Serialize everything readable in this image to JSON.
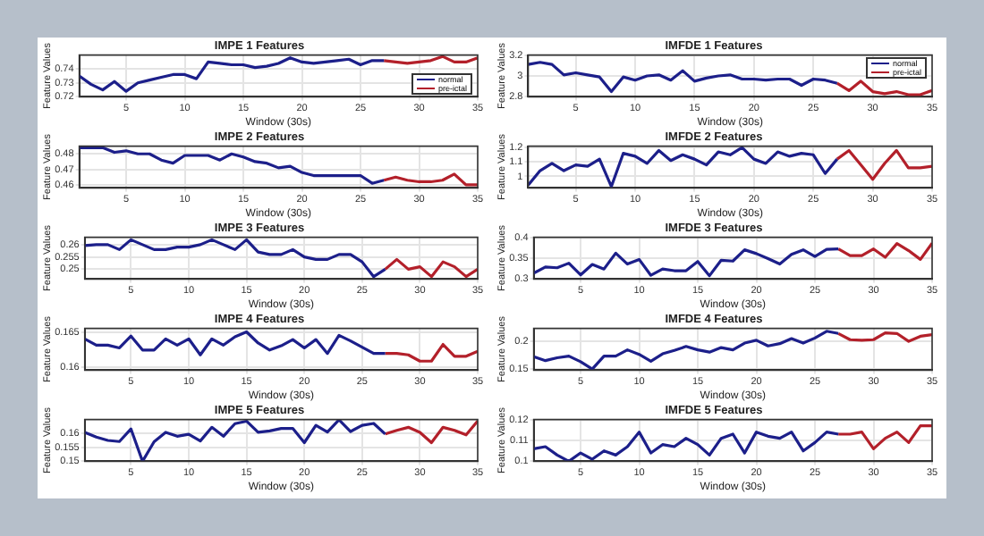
{
  "chart_data": [
    {
      "type": "line",
      "title": "IMPE 1 Features",
      "xlabel": "Window (30s)",
      "ylabel": "Feature Values",
      "xlim": [
        1,
        35
      ],
      "xticks": [
        5,
        10,
        15,
        20,
        25,
        30,
        35
      ],
      "ylim": [
        0.72,
        0.75
      ],
      "yticks": [
        0.72,
        0.73,
        0.74
      ],
      "grid": true,
      "legend": "bottom right",
      "series": [
        {
          "name": "normal",
          "color": "#1c1f8a",
          "x": [
            1,
            2,
            3,
            4,
            5,
            6,
            7,
            8,
            9,
            10,
            11,
            12,
            13,
            14,
            15,
            16,
            17,
            18,
            19,
            20,
            21,
            22,
            23,
            24,
            25,
            26,
            27
          ],
          "values": [
            0.735,
            0.729,
            0.725,
            0.731,
            0.724,
            0.73,
            0.732,
            0.734,
            0.736,
            0.736,
            0.733,
            0.745,
            0.744,
            0.743,
            0.743,
            0.741,
            0.742,
            0.744,
            0.748,
            0.745,
            0.744,
            0.745,
            0.746,
            0.747,
            0.743,
            0.746,
            0.746
          ]
        },
        {
          "name": "pre-ictal",
          "color": "#b3202a",
          "x": [
            27,
            28,
            29,
            30,
            31,
            32,
            33,
            34,
            35
          ],
          "values": [
            0.746,
            0.745,
            0.744,
            0.745,
            0.746,
            0.749,
            0.745,
            0.745,
            0.748
          ]
        }
      ]
    },
    {
      "type": "line",
      "title": "IMFDE 1 Features",
      "xlabel": "Window (30s)",
      "ylabel": "Feature Values",
      "xlim": [
        1,
        35
      ],
      "xticks": [
        5,
        10,
        15,
        20,
        25,
        30,
        35
      ],
      "ylim": [
        2.8,
        3.2
      ],
      "yticks": [
        2.8,
        3,
        3.2
      ],
      "grid": true,
      "legend": "top right",
      "series": [
        {
          "name": "normal",
          "color": "#1c1f8a",
          "x": [
            1,
            2,
            3,
            4,
            5,
            6,
            7,
            8,
            9,
            10,
            11,
            12,
            13,
            14,
            15,
            16,
            17,
            18,
            19,
            20,
            21,
            22,
            23,
            24,
            25,
            26,
            27
          ],
          "values": [
            3.11,
            3.13,
            3.11,
            3.01,
            3.03,
            3.01,
            2.99,
            2.85,
            2.99,
            2.96,
            3.0,
            3.01,
            2.96,
            3.05,
            2.95,
            2.98,
            3.0,
            3.01,
            2.97,
            2.97,
            2.96,
            2.97,
            2.97,
            2.91,
            2.97,
            2.96,
            2.93
          ]
        },
        {
          "name": "pre-ictal",
          "color": "#b3202a",
          "x": [
            27,
            28,
            29,
            30,
            31,
            32,
            33,
            34,
            35
          ],
          "values": [
            2.93,
            2.86,
            2.95,
            2.85,
            2.83,
            2.85,
            2.82,
            2.82,
            2.86
          ]
        }
      ]
    },
    {
      "type": "line",
      "title": "IMPE 2 Features",
      "xlabel": "Window (30s)",
      "ylabel": "Feature Values",
      "xlim": [
        1,
        35
      ],
      "xticks": [
        5,
        10,
        15,
        20,
        25,
        30,
        35
      ],
      "ylim": [
        0.458,
        0.485
      ],
      "yticks": [
        0.46,
        0.47,
        0.48
      ],
      "grid": true,
      "series": [
        {
          "color": "#1c1f8a",
          "x": [
            1,
            2,
            3,
            4,
            5,
            6,
            7,
            8,
            9,
            10,
            11,
            12,
            13,
            14,
            15,
            16,
            17,
            18,
            19,
            20,
            21,
            22,
            23,
            24,
            25,
            26,
            27
          ],
          "values": [
            0.484,
            0.484,
            0.484,
            0.481,
            0.482,
            0.48,
            0.48,
            0.476,
            0.474,
            0.479,
            0.479,
            0.479,
            0.476,
            0.48,
            0.478,
            0.475,
            0.474,
            0.471,
            0.472,
            0.468,
            0.466,
            0.466,
            0.466,
            0.466,
            0.466,
            0.461,
            0.463
          ]
        },
        {
          "color": "#b3202a",
          "x": [
            27,
            28,
            29,
            30,
            31,
            32,
            33,
            34,
            35
          ],
          "values": [
            0.463,
            0.465,
            0.463,
            0.462,
            0.462,
            0.463,
            0.467,
            0.46,
            0.46
          ]
        }
      ]
    },
    {
      "type": "line",
      "title": "IMFDE 2 Features",
      "xlabel": "Window (30s)",
      "ylabel": "Feature Values",
      "xlim": [
        1,
        35
      ],
      "xticks": [
        5,
        10,
        15,
        20,
        25,
        30,
        35
      ],
      "ylim": [
        0.92,
        1.21
      ],
      "yticks": [
        1,
        1.1,
        1.2
      ],
      "grid": true,
      "series": [
        {
          "color": "#1c1f8a",
          "x": [
            1,
            2,
            3,
            4,
            5,
            6,
            7,
            8,
            9,
            10,
            11,
            12,
            13,
            14,
            15,
            16,
            17,
            18,
            19,
            20,
            21,
            22,
            23,
            24,
            25,
            26,
            27
          ],
          "values": [
            0.94,
            1.04,
            1.09,
            1.04,
            1.08,
            1.07,
            1.12,
            0.93,
            1.16,
            1.14,
            1.09,
            1.18,
            1.11,
            1.15,
            1.12,
            1.08,
            1.17,
            1.15,
            1.2,
            1.12,
            1.09,
            1.17,
            1.14,
            1.16,
            1.15,
            1.02,
            1.12
          ]
        },
        {
          "color": "#b3202a",
          "x": [
            27,
            28,
            29,
            30,
            31,
            32,
            33,
            34,
            35
          ],
          "values": [
            1.12,
            1.18,
            1.08,
            0.98,
            1.09,
            1.18,
            1.06,
            1.06,
            1.07
          ]
        }
      ]
    },
    {
      "type": "line",
      "title": "IMPE 3 Features",
      "xlabel": "Window (30s)",
      "ylabel": "Feature Values",
      "xlim": [
        1,
        35
      ],
      "xticks": [
        5,
        10,
        15,
        20,
        25,
        30,
        35
      ],
      "ylim": [
        0.246,
        0.263
      ],
      "yticks": [
        0.25,
        0.255,
        0.26
      ],
      "grid": true,
      "series": [
        {
          "color": "#1c1f8a",
          "x": [
            1,
            2,
            3,
            4,
            5,
            6,
            7,
            8,
            9,
            10,
            11,
            12,
            13,
            14,
            15,
            16,
            17,
            18,
            19,
            20,
            21,
            22,
            23,
            24,
            25,
            26,
            27
          ],
          "values": [
            0.2596,
            0.26,
            0.26,
            0.258,
            0.262,
            0.26,
            0.258,
            0.258,
            0.259,
            0.259,
            0.26,
            0.262,
            0.26,
            0.258,
            0.262,
            0.257,
            0.256,
            0.256,
            0.258,
            0.255,
            0.254,
            0.254,
            0.256,
            0.256,
            0.253,
            0.247,
            0.25
          ]
        },
        {
          "color": "#b3202a",
          "x": [
            27,
            28,
            29,
            30,
            31,
            32,
            33,
            34,
            35
          ],
          "values": [
            0.25,
            0.254,
            0.25,
            0.251,
            0.247,
            0.253,
            0.251,
            0.247,
            0.25
          ]
        }
      ]
    },
    {
      "type": "line",
      "title": "IMFDE 3 Features",
      "xlabel": "Window (30s)",
      "ylabel": "Feature Values",
      "xlim": [
        1,
        35
      ],
      "xticks": [
        5,
        10,
        15,
        20,
        25,
        30,
        35
      ],
      "ylim": [
        0.3,
        0.4
      ],
      "yticks": [
        0.3,
        0.35,
        0.4
      ],
      "grid": true,
      "series": [
        {
          "color": "#1c1f8a",
          "x": [
            1,
            2,
            3,
            4,
            5,
            6,
            7,
            8,
            9,
            10,
            11,
            12,
            13,
            14,
            15,
            16,
            17,
            18,
            19,
            20,
            21,
            22,
            23,
            24,
            25,
            26,
            27
          ],
          "values": [
            0.314,
            0.329,
            0.327,
            0.338,
            0.31,
            0.335,
            0.324,
            0.362,
            0.336,
            0.347,
            0.309,
            0.324,
            0.32,
            0.32,
            0.342,
            0.308,
            0.345,
            0.343,
            0.37,
            0.361,
            0.349,
            0.336,
            0.359,
            0.37,
            0.354,
            0.371,
            0.372
          ]
        },
        {
          "color": "#b3202a",
          "x": [
            27,
            28,
            29,
            30,
            31,
            32,
            33,
            34,
            35
          ],
          "values": [
            0.372,
            0.356,
            0.356,
            0.372,
            0.352,
            0.385,
            0.368,
            0.347,
            0.386
          ]
        }
      ]
    },
    {
      "type": "line",
      "title": "IMPE 4 Features",
      "xlabel": "Window (30s)",
      "ylabel": "Feature Values",
      "xlim": [
        1,
        35
      ],
      "xticks": [
        5,
        10,
        15,
        20,
        25,
        30,
        35
      ],
      "ylim": [
        0.1595,
        0.1655
      ],
      "yticks": [
        0.16,
        0.165
      ],
      "grid": true,
      "series": [
        {
          "color": "#1c1f8a",
          "x": [
            1,
            2,
            3,
            4,
            5,
            6,
            7,
            8,
            9,
            10,
            11,
            12,
            13,
            14,
            15,
            16,
            17,
            18,
            19,
            20,
            21,
            22,
            23,
            24,
            25,
            26,
            27
          ],
          "values": [
            0.164,
            0.1631,
            0.1631,
            0.1627,
            0.1644,
            0.1624,
            0.1624,
            0.164,
            0.1631,
            0.164,
            0.1617,
            0.164,
            0.1631,
            0.1643,
            0.165,
            0.1634,
            0.1624,
            0.163,
            0.1639,
            0.1627,
            0.1639,
            0.1619,
            0.1645,
            0.1637,
            0.1628,
            0.1619,
            0.1619
          ]
        },
        {
          "color": "#b3202a",
          "x": [
            27,
            28,
            29,
            30,
            31,
            32,
            33,
            34,
            35
          ],
          "values": [
            0.1619,
            0.1619,
            0.1617,
            0.1608,
            0.1608,
            0.1632,
            0.1615,
            0.1615,
            0.1622
          ]
        }
      ]
    },
    {
      "type": "line",
      "title": "IMFDE 4 Features",
      "xlabel": "Window (30s)",
      "ylabel": "Feature Values",
      "xlim": [
        1,
        35
      ],
      "xticks": [
        5,
        10,
        15,
        20,
        25,
        30,
        35
      ],
      "ylim": [
        0.148,
        0.222
      ],
      "yticks": [
        0.15,
        0.2
      ],
      "grid": true,
      "series": [
        {
          "color": "#1c1f8a",
          "x": [
            1,
            2,
            3,
            4,
            5,
            6,
            7,
            8,
            9,
            10,
            11,
            12,
            13,
            14,
            15,
            16,
            17,
            18,
            19,
            20,
            21,
            22,
            23,
            24,
            25,
            26,
            27
          ],
          "values": [
            0.172,
            0.165,
            0.17,
            0.173,
            0.163,
            0.15,
            0.173,
            0.173,
            0.184,
            0.176,
            0.164,
            0.177,
            0.183,
            0.19,
            0.184,
            0.18,
            0.188,
            0.184,
            0.196,
            0.201,
            0.191,
            0.195,
            0.204,
            0.196,
            0.205,
            0.217,
            0.213
          ]
        },
        {
          "color": "#b3202a",
          "x": [
            27,
            28,
            29,
            30,
            31,
            32,
            33,
            34,
            35
          ],
          "values": [
            0.213,
            0.202,
            0.201,
            0.202,
            0.214,
            0.213,
            0.199,
            0.208,
            0.211
          ]
        }
      ]
    },
    {
      "type": "line",
      "title": "IMPE 5 Features",
      "xlabel": "Window (30s)",
      "ylabel": "Feature Values",
      "xlim": [
        1,
        35
      ],
      "xticks": [
        5,
        10,
        15,
        20,
        25,
        30,
        35
      ],
      "ylim": [
        0.15,
        0.165
      ],
      "yticks": [
        0.15,
        0.155,
        0.16
      ],
      "grid": true,
      "series": [
        {
          "color": "#1c1f8a",
          "x": [
            1,
            2,
            3,
            4,
            5,
            6,
            7,
            8,
            9,
            10,
            11,
            12,
            13,
            14,
            15,
            16,
            17,
            18,
            19,
            20,
            21,
            22,
            23,
            24,
            25,
            26,
            27
          ],
          "values": [
            0.1604,
            0.1587,
            0.1575,
            0.1571,
            0.1616,
            0.15,
            0.157,
            0.1604,
            0.159,
            0.1597,
            0.1573,
            0.1622,
            0.159,
            0.1635,
            0.1644,
            0.1604,
            0.1609,
            0.1618,
            0.1618,
            0.1567,
            0.1629,
            0.1605,
            0.1649,
            0.1607,
            0.1629,
            0.1636,
            0.1598
          ]
        },
        {
          "color": "#b3202a",
          "x": [
            27,
            28,
            29,
            30,
            31,
            32,
            33,
            34,
            35
          ],
          "values": [
            0.1598,
            0.1611,
            0.1622,
            0.1604,
            0.1567,
            0.1622,
            0.1611,
            0.1595,
            0.1645
          ]
        }
      ]
    },
    {
      "type": "line",
      "title": "IMFDE 5 Features",
      "xlabel": "Window (30s)",
      "ylabel": "Feature Values",
      "xlim": [
        1,
        35
      ],
      "xticks": [
        5,
        10,
        15,
        20,
        25,
        30,
        35
      ],
      "ylim": [
        0.1,
        0.12
      ],
      "yticks": [
        0.1,
        0.11,
        0.12
      ],
      "grid": true,
      "series": [
        {
          "color": "#1c1f8a",
          "x": [
            1,
            2,
            3,
            4,
            5,
            6,
            7,
            8,
            9,
            10,
            11,
            12,
            13,
            14,
            15,
            16,
            17,
            18,
            19,
            20,
            21,
            22,
            23,
            24,
            25,
            26,
            27
          ],
          "values": [
            0.106,
            0.107,
            0.103,
            0.1,
            0.104,
            0.101,
            0.105,
            0.103,
            0.107,
            0.114,
            0.104,
            0.108,
            0.107,
            0.111,
            0.108,
            0.103,
            0.111,
            0.113,
            0.104,
            0.114,
            0.112,
            0.111,
            0.114,
            0.105,
            0.109,
            0.114,
            0.113
          ]
        },
        {
          "color": "#b3202a",
          "x": [
            27,
            28,
            29,
            30,
            31,
            32,
            33,
            34,
            35
          ],
          "values": [
            0.113,
            0.113,
            0.114,
            0.106,
            0.111,
            0.114,
            0.109,
            0.117,
            0.117
          ]
        }
      ]
    }
  ]
}
